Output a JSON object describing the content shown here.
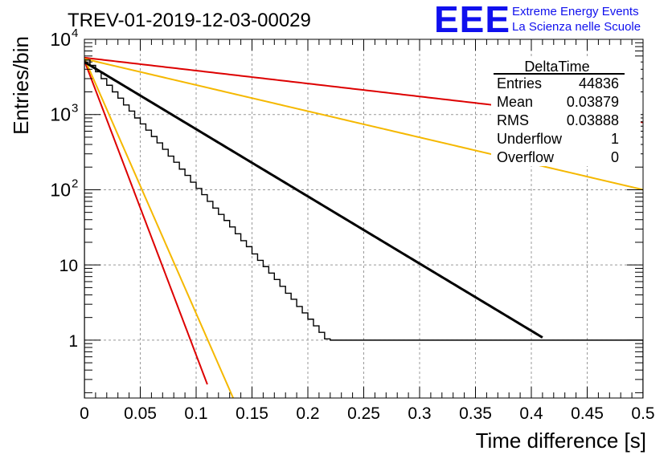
{
  "header": {
    "run_title": "TREV-01-2019-12-03-00029",
    "logo_text": "EEE",
    "logo_line1": "Extreme Energy Events",
    "logo_line2": "La Scienza nelle Scuole"
  },
  "stats_box": {
    "title": "DeltaTime",
    "rows": [
      {
        "label": "Entries",
        "value": "44836"
      },
      {
        "label": "Mean",
        "value": "0.03879"
      },
      {
        "label": "RMS",
        "value": "0.03888"
      },
      {
        "label": "Underflow",
        "value": "1"
      },
      {
        "label": "Overflow",
        "value": "0"
      }
    ]
  },
  "colors": {
    "histogram": "#000000",
    "fit": "#000000",
    "red_lines": "#dd0000",
    "yellow_lines": "#f5b800",
    "logo": "#1010ee",
    "grid": "#999999"
  },
  "chart_data": {
    "type": "line",
    "title": "TREV-01-2019-12-03-00029",
    "xlabel": "Time difference [s]",
    "ylabel": "Entries/bin",
    "xlim": [
      0,
      0.5
    ],
    "ylim": [
      0.17,
      10000
    ],
    "yscale": "log",
    "grid": true,
    "legend": "top-right",
    "xticks": [
      0,
      0.05,
      0.1,
      0.15,
      0.2,
      0.25,
      0.3,
      0.35,
      0.4,
      0.45,
      0.5
    ],
    "xtick_labels": [
      "0",
      "0.05",
      "0.1",
      "0.15",
      "0.2",
      "0.25",
      "0.3",
      "0.35",
      "0.4",
      "0.45",
      "0.5"
    ],
    "yticks": [
      1,
      10,
      100,
      1000,
      10000
    ],
    "ytick_labels": [
      {
        "base": "1",
        "exp": ""
      },
      {
        "base": "10",
        "exp": ""
      },
      {
        "base": "10",
        "exp": "2"
      },
      {
        "base": "10",
        "exp": "3"
      },
      {
        "base": "10",
        "exp": "4"
      }
    ],
    "series": [
      {
        "kind": "histogram",
        "bin_width": 0.005,
        "values": [
          5300,
          4500,
          3700,
          3000,
          2450,
          2000,
          1650,
          1340,
          1110,
          900,
          750,
          620,
          510,
          420,
          345,
          280,
          232,
          188,
          155,
          126,
          104,
          86,
          70,
          57,
          47,
          39,
          32,
          26,
          21,
          17.5,
          14,
          11.5,
          9.5,
          7.8,
          6.4,
          5.2,
          4.2,
          3.5,
          2.8,
          2.3,
          1.9,
          1.55,
          1.27,
          1.04,
          1,
          1,
          1,
          1,
          1,
          1,
          1,
          1,
          1,
          1,
          1,
          1,
          1,
          1,
          1,
          1,
          1,
          1,
          1,
          1,
          1,
          1,
          1,
          1,
          1,
          1,
          1,
          1,
          1,
          1,
          1,
          1,
          1,
          1,
          1,
          1,
          1,
          1,
          1,
          1,
          1,
          1,
          1,
          1,
          1,
          1,
          1,
          1,
          1,
          1,
          1,
          1,
          1,
          1,
          1,
          1
        ]
      },
      {
        "kind": "fit",
        "start": 5000,
        "tau": 0.0486,
        "x_range": [
          0,
          0.41
        ]
      },
      {
        "kind": "red-slow",
        "start": 5700,
        "tau": 0.2525,
        "x_range": [
          0,
          0.5
        ]
      },
      {
        "kind": "red-fast",
        "start": 5200,
        "tau": 0.0111,
        "x_range": [
          0,
          0.11
        ]
      },
      {
        "kind": "yellow-slow",
        "start": 5500,
        "tau": 0.1248,
        "x_range": [
          0,
          0.5
        ]
      },
      {
        "kind": "yellow-fast",
        "start": 5600,
        "tau": 0.0128,
        "x_range": [
          0,
          0.14
        ]
      }
    ]
  }
}
